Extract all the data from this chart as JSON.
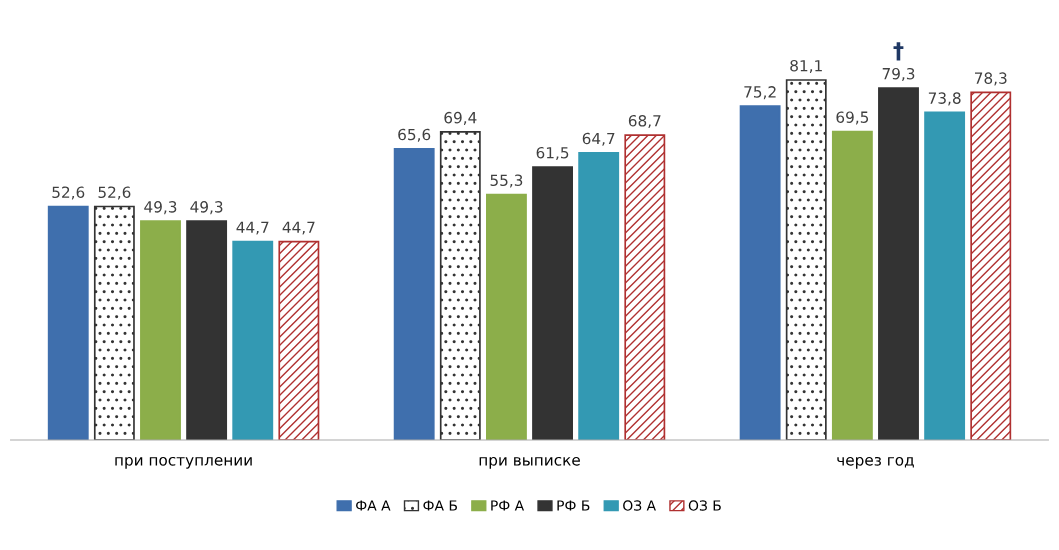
{
  "chart_data": {
    "type": "bar",
    "categories": [
      "при поступлении",
      "при выписке",
      "через год"
    ],
    "series": [
      {
        "name": "ФА А",
        "color": "#3f6fad",
        "values": [
          52.6,
          65.6,
          75.2
        ],
        "value_labels": [
          "52,6",
          "65,6",
          "75,2"
        ]
      },
      {
        "name": "ФА Б",
        "color": "#333333",
        "values": [
          52.6,
          69.4,
          81.1
        ],
        "value_labels": [
          "52,6",
          "69,4",
          "81,1"
        ]
      },
      {
        "name": "РФ А",
        "color": "#8cae4a",
        "values": [
          49.3,
          55.3,
          69.5
        ],
        "value_labels": [
          "49,3",
          "55,3",
          "69,5"
        ]
      },
      {
        "name": "РФ Б",
        "color": "#333333",
        "values": [
          49.3,
          61.5,
          79.3
        ],
        "value_labels": [
          "49,3",
          "61,5",
          "79,3"
        ]
      },
      {
        "name": "ОЗ А",
        "color": "#3399b3",
        "values": [
          44.7,
          64.7,
          73.8
        ],
        "value_labels": [
          "44,7",
          "64,7",
          "73,8"
        ]
      },
      {
        "name": "ОЗ Б",
        "color": "#b03030",
        "values": [
          44.7,
          68.7,
          78.3
        ],
        "value_labels": [
          "44,7",
          "68,7",
          "78,3"
        ]
      }
    ],
    "legend": "bottom",
    "grid": false,
    "annotations": [
      {
        "text": "†",
        "x": "через год",
        "y": 79.3
      }
    ]
  }
}
